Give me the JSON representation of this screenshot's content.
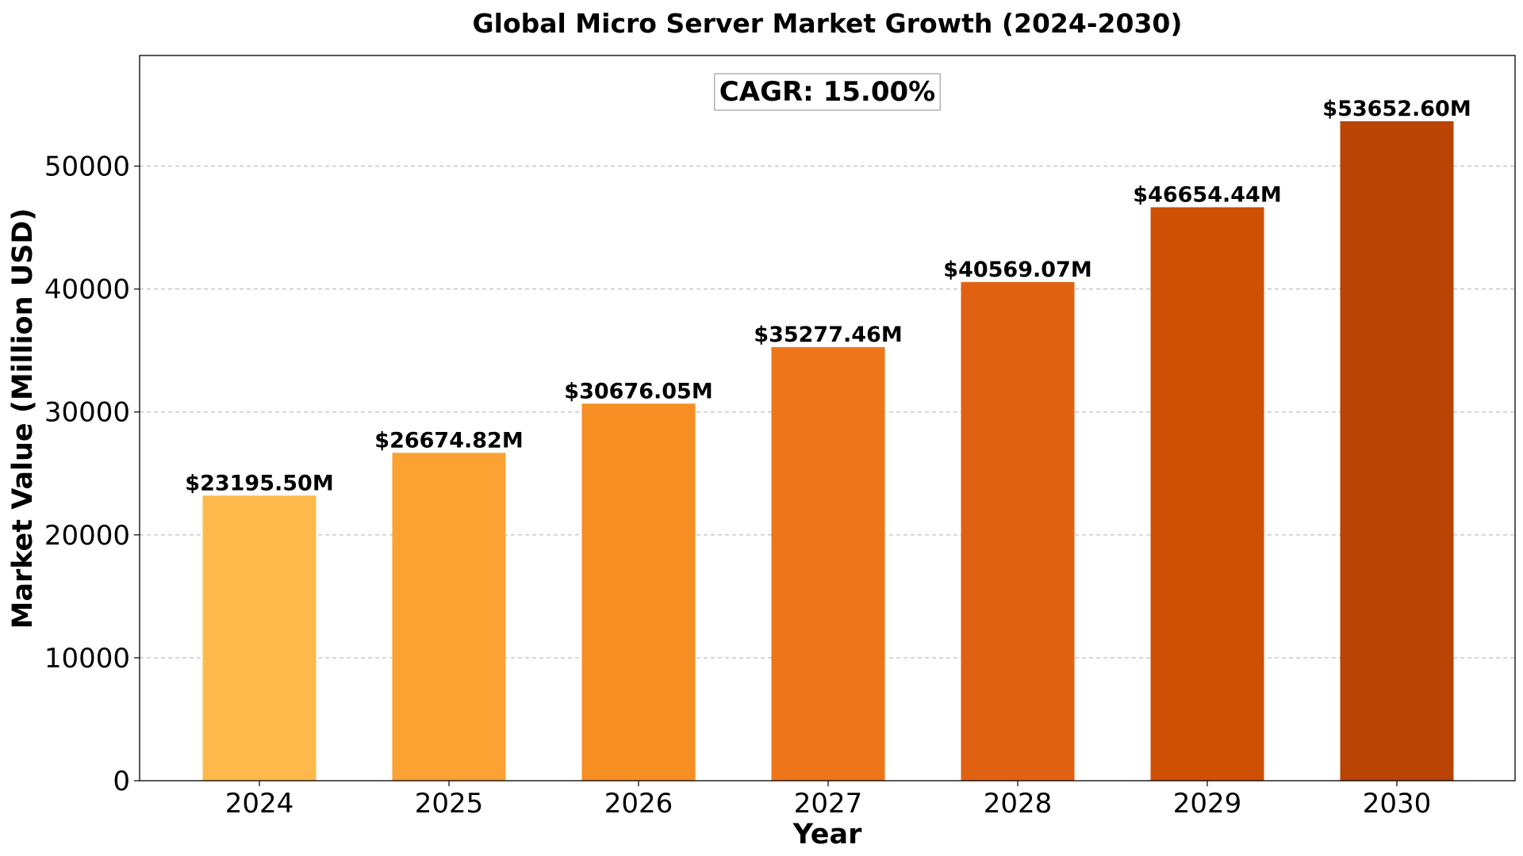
{
  "chart_data": {
    "type": "bar",
    "title": "Global Micro Server Market Growth (2024-2030)",
    "xlabel": "Year",
    "ylabel": "Market Value (Million USD)",
    "categories": [
      "2024",
      "2025",
      "2026",
      "2027",
      "2028",
      "2029",
      "2030"
    ],
    "values": [
      23195.5,
      26674.82,
      30676.05,
      35277.46,
      40569.07,
      46654.44,
      53652.6
    ],
    "data_labels": [
      "$23195.50M",
      "$26674.82M",
      "$30676.05M",
      "$35277.46M",
      "$40569.07M",
      "$46654.44M",
      "$53652.60M"
    ],
    "bar_colors": [
      "#FDB94A",
      "#FBA233",
      "#F78F24",
      "#EE761A",
      "#E06212",
      "#D05006",
      "#B94405"
    ],
    "ylim": [
      0,
      59000
    ],
    "yticks": [
      0,
      10000,
      20000,
      30000,
      40000,
      50000
    ],
    "ytick_labels": [
      "0",
      "10000",
      "20000",
      "30000",
      "40000",
      "50000"
    ],
    "grid": "y-dashed",
    "annotation": "CAGR: 15.00%"
  }
}
